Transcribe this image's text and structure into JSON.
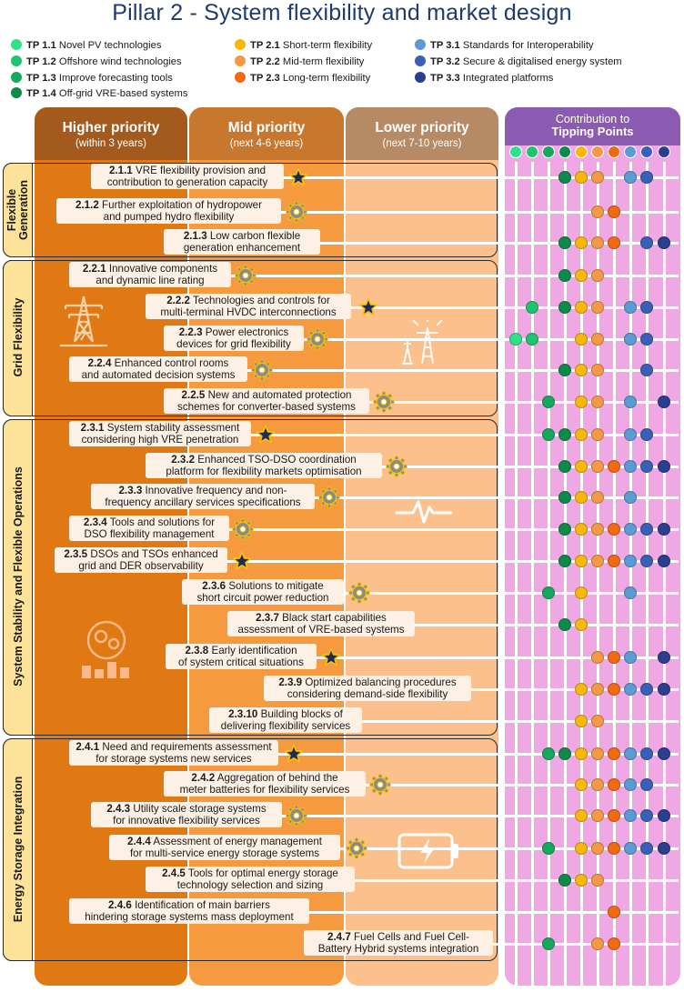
{
  "title": "Pillar 2 - System flexibility and market design",
  "colors": {
    "tp1_1": "#2ee28a",
    "tp1_2": "#1fc46e",
    "tp1_3": "#14a95c",
    "tp1_4": "#0b8a4a",
    "tp2_1": "#f7b80a",
    "tp2_2": "#f49a46",
    "tp2_3": "#f26a10",
    "tp3_1": "#5b9bd5",
    "tp3_2": "#3a5fb8",
    "tp3_3": "#2a3f8f"
  },
  "legend": [
    {
      "id": "TP 1.1",
      "label": "Novel PV technologies",
      "color": "#2ee28a"
    },
    {
      "id": "TP 1.2",
      "label": "Offshore wind technologies",
      "color": "#1fc46e"
    },
    {
      "id": "TP 1.3",
      "label": "Improve forecasting tools",
      "color": "#14a95c"
    },
    {
      "id": "TP 1.4",
      "label": "Off-grid VRE-based  systems",
      "color": "#0b8a4a"
    },
    {
      "id": "TP 2.1",
      "label": "Short-term flexibility",
      "color": "#f7b80a"
    },
    {
      "id": "TP 2.2",
      "label": "Mid-term flexibility",
      "color": "#f49a46"
    },
    {
      "id": "TP 2.3",
      "label": "Long-term flexibility",
      "color": "#f26a10"
    },
    {
      "id": "TP 3.1",
      "label": "Standards for Interoperability",
      "color": "#5b9bd5"
    },
    {
      "id": "TP 3.2",
      "label": "Secure & digitalised energy system",
      "color": "#3a5fb8"
    },
    {
      "id": "TP 3.3",
      "label": "Integrated platforms",
      "color": "#2a3f8f"
    }
  ],
  "columns": [
    {
      "title": "Higher priority",
      "subtitle": "(within 3 years)"
    },
    {
      "title": "Mid priority",
      "subtitle": "(next 4-6 years)"
    },
    {
      "title": "Lower priority",
      "subtitle": "(next 7-10 years)"
    }
  ],
  "contribution": {
    "line1": "Contribution to",
    "line2": "Tipping Points"
  },
  "sections": [
    {
      "label": "Flexible Generation"
    },
    {
      "label": "Grid Flexibility"
    },
    {
      "label": "System Stability and Flexible Operations"
    },
    {
      "label": "Energy Storage Integration"
    }
  ],
  "items": [
    {
      "code": "2.1.1",
      "line1": "VRE flexibility provision and",
      "line2": "contribution to generation capacity",
      "marker": "star",
      "tps": [
        4,
        5,
        6,
        8,
        9
      ]
    },
    {
      "code": "2.1.2",
      "line1": "Further exploitation of hydropower",
      "line2": "and pumped hydro flexibility",
      "marker": "gear",
      "tps": [
        6,
        7
      ]
    },
    {
      "code": "2.1.3",
      "line1": "Low carbon flexible",
      "line2": "generation enhancement",
      "marker": "none",
      "tps": [
        4,
        5,
        6,
        7,
        9,
        10
      ]
    },
    {
      "code": "2.2.1",
      "line1": "Innovative components",
      "line2": "and dynamic line rating",
      "marker": "gear",
      "tps": [
        4,
        5,
        6
      ]
    },
    {
      "code": "2.2.2",
      "line1": "Technologies and controls for",
      "line2": "multi-terminal HVDC interconnections",
      "marker": "star",
      "tps": [
        2,
        4,
        5,
        6,
        8,
        9
      ]
    },
    {
      "code": "2.2.3",
      "line1": "Power electronics",
      "line2": "devices for grid flexibility",
      "marker": "gear",
      "tps": [
        1,
        2,
        5,
        6,
        8,
        9
      ]
    },
    {
      "code": "2.2.4",
      "line1": "Enhanced control rooms",
      "line2": "and automated decision systems",
      "marker": "gear",
      "tps": [
        4,
        5,
        6,
        9
      ]
    },
    {
      "code": "2.2.5",
      "line1": "New and automated protection",
      "line2": "schemes for converter-based systems",
      "marker": "gear",
      "tps": [
        3,
        5,
        6,
        8,
        10
      ]
    },
    {
      "code": "2.3.1",
      "line1": "System stability assessment",
      "line2": "considering high VRE penetration",
      "marker": "star",
      "tps": [
        3,
        4,
        5,
        6,
        8,
        9
      ]
    },
    {
      "code": "2.3.2",
      "line1": "Enhanced TSO-DSO coordination",
      "line2": "platform for flexibility markets optimisation",
      "marker": "gear",
      "tps": [
        4,
        5,
        6,
        7,
        8,
        9,
        10
      ]
    },
    {
      "code": "2.3.3",
      "line1": "Innovative frequency and non-",
      "line2": "frequency ancillary services specifications",
      "marker": "gear",
      "tps": [
        4,
        5,
        6,
        8
      ]
    },
    {
      "code": "2.3.4",
      "line1": "Tools and solutions for",
      "line2": "DSO flexibility management",
      "marker": "gear",
      "tps": [
        4,
        5,
        6,
        7,
        8,
        9,
        10
      ]
    },
    {
      "code": "2.3.5",
      "line1": "DSOs and TSOs enhanced",
      "line2": "grid and DER observability",
      "marker": "star",
      "tps": [
        4,
        5,
        6,
        7,
        8,
        9,
        10
      ]
    },
    {
      "code": "2.3.6",
      "line1": "Solutions to mitigate",
      "line2": "short circuit power reduction",
      "marker": "gear",
      "tps": [
        3,
        5,
        8
      ]
    },
    {
      "code": "2.3.7",
      "line1": "Black start capabilities",
      "line2": "assessment of VRE-based systems",
      "marker": "none",
      "tps": [
        4,
        5
      ]
    },
    {
      "code": "2.3.8",
      "line1": "Early identification",
      "line2": "of system critical situations",
      "marker": "star",
      "tps": [
        6,
        7,
        8,
        10
      ]
    },
    {
      "code": "2.3.9",
      "line1": "Optimized balancing procedures",
      "line2": "considering demand-side flexibility",
      "marker": "none",
      "tps": [
        5,
        6,
        7,
        8,
        9,
        10
      ]
    },
    {
      "code": "2.3.10",
      "line1": "Building blocks of",
      "line2": "delivering flexibility services",
      "marker": "none",
      "tps": [
        5,
        6
      ]
    },
    {
      "code": "2.4.1",
      "line1": "Need and requirements assessment",
      "line2": "for storage systems new services",
      "marker": "star",
      "tps": [
        3,
        4,
        5,
        6,
        7,
        8,
        9,
        10
      ]
    },
    {
      "code": "2.4.2",
      "line1": "Aggregation of behind the",
      "line2": "meter batteries for flexibility services",
      "marker": "gear",
      "tps": [
        5,
        6,
        7,
        8,
        9
      ]
    },
    {
      "code": "2.4.3",
      "line1": "Utility scale storage systems",
      "line2": "for innovative flexibility services",
      "marker": "gear",
      "tps": [
        5,
        6,
        7,
        8,
        9,
        10
      ]
    },
    {
      "code": "2.4.4",
      "line1": "Assessment of energy management",
      "line2": "for multi-service energy storage systems",
      "marker": "gear",
      "tps": [
        3,
        5,
        6,
        7,
        8,
        9,
        10
      ]
    },
    {
      "code": "2.4.5",
      "line1": "Tools for optimal energy storage",
      "line2": "technology selection and sizing",
      "marker": "none",
      "tps": [
        4,
        5,
        6
      ]
    },
    {
      "code": "2.4.6",
      "line1": "Identification of main barriers",
      "line2": "hindering storage systems mass deployment",
      "marker": "none",
      "tps": [
        7
      ]
    },
    {
      "code": "2.4.7",
      "line1": "Fuel Cells and Fuel Cell-",
      "line2": "Battery Hybrid systems integration",
      "marker": "none",
      "tps": [
        3,
        6,
        7
      ]
    }
  ],
  "icons": [
    "transmission-tower-icon",
    "power-node-icon",
    "waveform-icon",
    "gears-chart-icon",
    "battery-charging-icon",
    "star-icon",
    "gear-icon"
  ]
}
